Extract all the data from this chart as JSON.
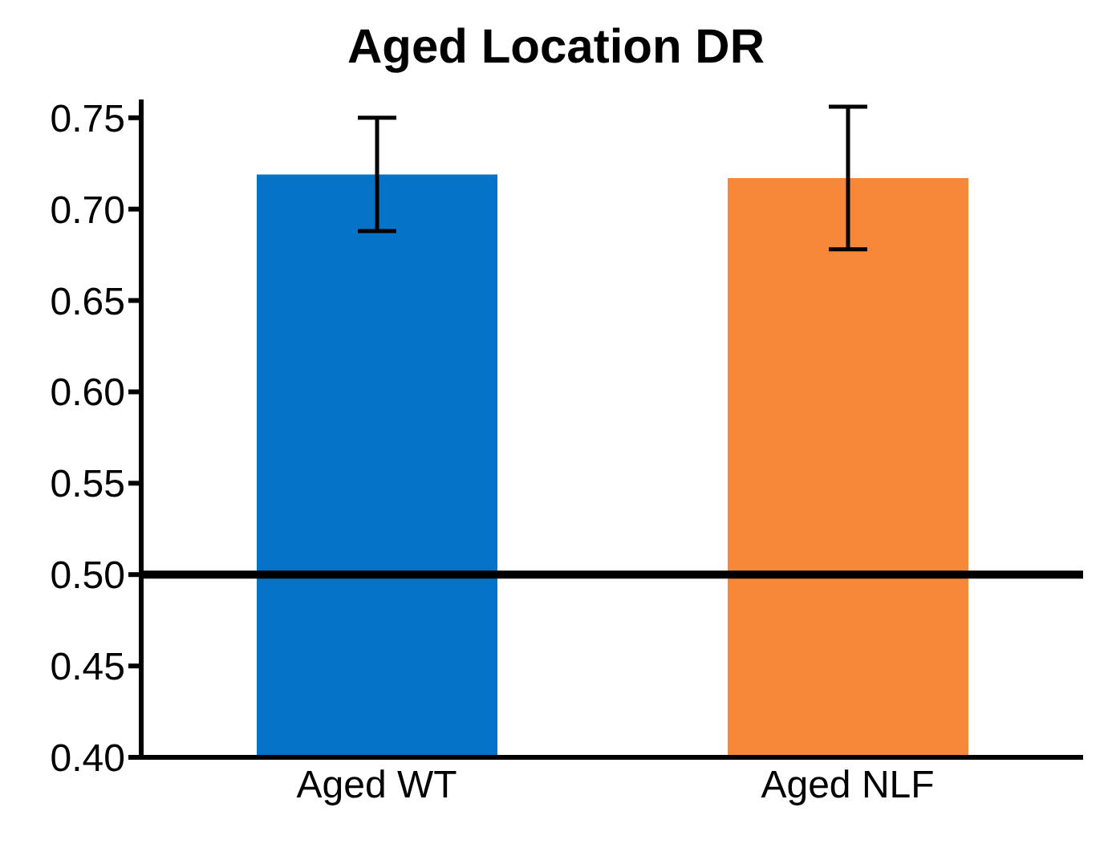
{
  "chart_data": {
    "type": "bar",
    "title": "Aged Location DR",
    "categories": [
      "Aged WT",
      "Aged NLF"
    ],
    "values": [
      0.719,
      0.717
    ],
    "errors": [
      0.031,
      0.039
    ],
    "colors": [
      "#0574c8",
      "#f7883a"
    ],
    "ylim": [
      0.4,
      0.76
    ],
    "yticks": [
      {
        "value": 0.4,
        "label": "0.40"
      },
      {
        "value": 0.45,
        "label": "0.45"
      },
      {
        "value": 0.5,
        "label": "0.50"
      },
      {
        "value": 0.55,
        "label": "0.55"
      },
      {
        "value": 0.6,
        "label": "0.60"
      },
      {
        "value": 0.65,
        "label": "0.65"
      },
      {
        "value": 0.7,
        "label": "0.70"
      },
      {
        "value": 0.75,
        "label": "0.75"
      }
    ],
    "ref_lines": [
      {
        "axis": "y",
        "value": 0.5,
        "color": "#000000"
      }
    ],
    "grid": false,
    "legend": false
  }
}
